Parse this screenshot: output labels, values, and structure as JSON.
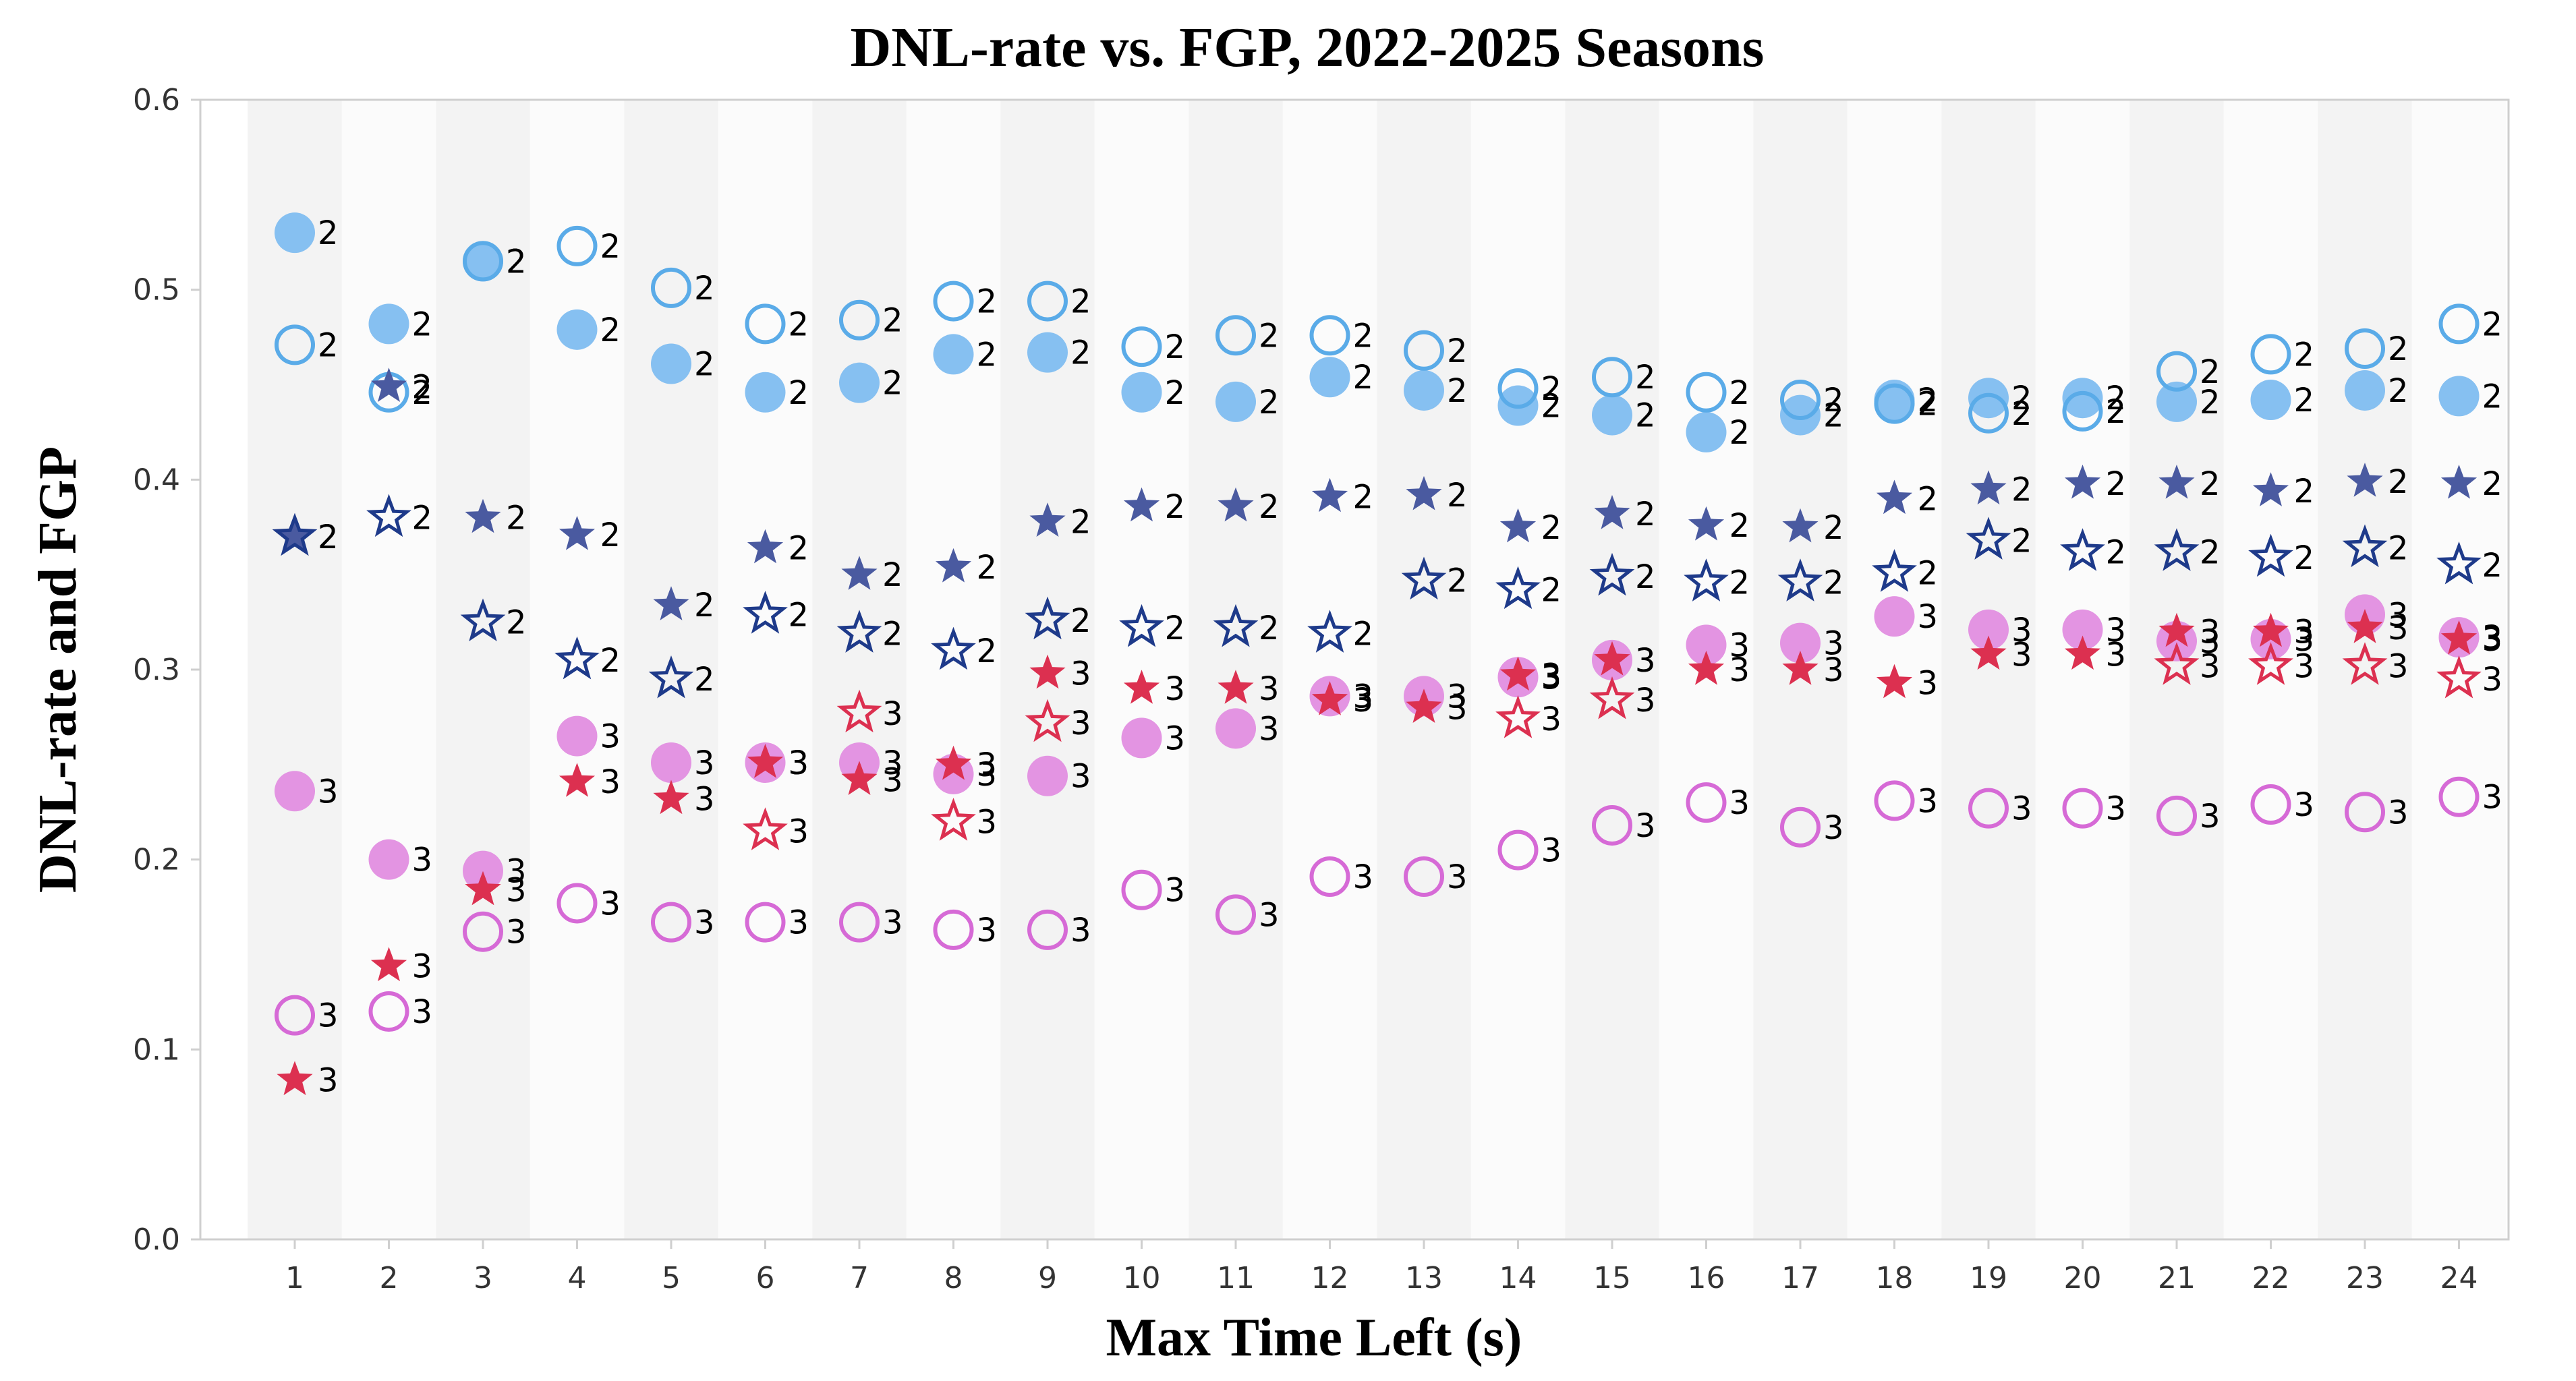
{
  "chart_data": {
    "type": "scatter",
    "title": "DNL-rate vs. FGP, 2022-2025 Seasons",
    "xlabel": "Max Time Left (s)",
    "ylabel": "DNL-rate and FGP",
    "ylim": [
      0,
      0.6
    ],
    "yticks": [
      "0.0",
      "0.1",
      "0.2",
      "0.3",
      "0.4",
      "0.5",
      "0.6"
    ],
    "x": [
      1,
      2,
      3,
      4,
      5,
      6,
      7,
      8,
      9,
      10,
      11,
      12,
      13,
      14,
      15,
      16,
      17,
      18,
      19,
      20,
      21,
      22,
      23,
      24
    ],
    "grid": false,
    "alternating_bands": true,
    "series": [
      {
        "marker": "circle-filled",
        "color": "#7fbdf0",
        "label": "2",
        "values": [
          0.53,
          0.482,
          0.515,
          0.479,
          0.461,
          0.446,
          0.451,
          0.466,
          0.467,
          0.446,
          0.441,
          0.454,
          0.447,
          0.439,
          0.434,
          0.425,
          0.434,
          0.442,
          0.443,
          0.443,
          0.441,
          0.442,
          0.447,
          0.444
        ]
      },
      {
        "marker": "circle-open",
        "color": "#5aabe8",
        "label": "2",
        "values": [
          0.471,
          0.446,
          0.515,
          0.523,
          0.501,
          0.482,
          0.484,
          0.494,
          0.494,
          0.47,
          0.476,
          0.476,
          0.468,
          0.448,
          0.454,
          0.446,
          0.442,
          0.44,
          0.435,
          0.436,
          0.457,
          0.466,
          0.469,
          0.482
        ]
      },
      {
        "marker": "star-filled",
        "color": "#4a5aa0",
        "label": "2",
        "values": [
          0.37,
          0.449,
          0.38,
          0.371,
          0.334,
          0.364,
          0.35,
          0.354,
          0.378,
          0.386,
          0.386,
          0.391,
          0.392,
          0.375,
          0.382,
          0.376,
          0.375,
          0.39,
          0.395,
          0.398,
          0.398,
          0.394,
          0.399,
          0.398
        ]
      },
      {
        "marker": "star-open",
        "color": "#1e3a8a",
        "label": "2",
        "values": [
          0.37,
          0.38,
          0.325,
          0.305,
          0.295,
          0.329,
          0.319,
          0.31,
          0.326,
          0.322,
          0.322,
          0.319,
          0.347,
          0.342,
          0.349,
          0.346,
          0.346,
          0.351,
          0.368,
          0.362,
          0.362,
          0.359,
          0.364,
          0.355
        ]
      },
      {
        "marker": "circle-filled",
        "color": "#e28ee0",
        "label": "3",
        "values": [
          0.236,
          0.2,
          0.194,
          0.265,
          0.251,
          0.251,
          0.251,
          0.245,
          0.244,
          0.264,
          0.269,
          0.286,
          0.286,
          0.296,
          0.305,
          0.313,
          0.314,
          0.328,
          0.321,
          0.321,
          0.315,
          0.316,
          0.329,
          0.317
        ]
      },
      {
        "marker": "circle-open",
        "color": "#d66ad6",
        "label": "3",
        "values": [
          0.118,
          0.12,
          0.162,
          0.177,
          0.167,
          0.167,
          0.167,
          0.163,
          0.163,
          0.184,
          0.171,
          0.191,
          0.191,
          0.205,
          0.218,
          0.23,
          0.217,
          0.231,
          0.227,
          0.227,
          0.223,
          0.229,
          0.225,
          0.233
        ]
      },
      {
        "marker": "star-filled",
        "color": "#dc3050",
        "label": "3",
        "values": [
          0.084,
          0.144,
          0.184,
          0.241,
          0.232,
          0.251,
          0.242,
          0.25,
          0.298,
          0.29,
          0.29,
          0.284,
          0.28,
          0.297,
          0.305,
          0.3,
          0.3,
          0.293,
          0.308,
          0.308,
          0.32,
          0.32,
          0.322,
          0.316
        ]
      },
      {
        "marker": "star-open",
        "color": "#dc3050",
        "label": "3",
        "values": [
          null,
          null,
          null,
          null,
          null,
          0.215,
          0.277,
          0.22,
          0.272,
          null,
          null,
          null,
          null,
          0.274,
          0.284,
          null,
          null,
          null,
          null,
          null,
          0.302,
          0.302,
          0.302,
          0.295
        ]
      }
    ]
  }
}
